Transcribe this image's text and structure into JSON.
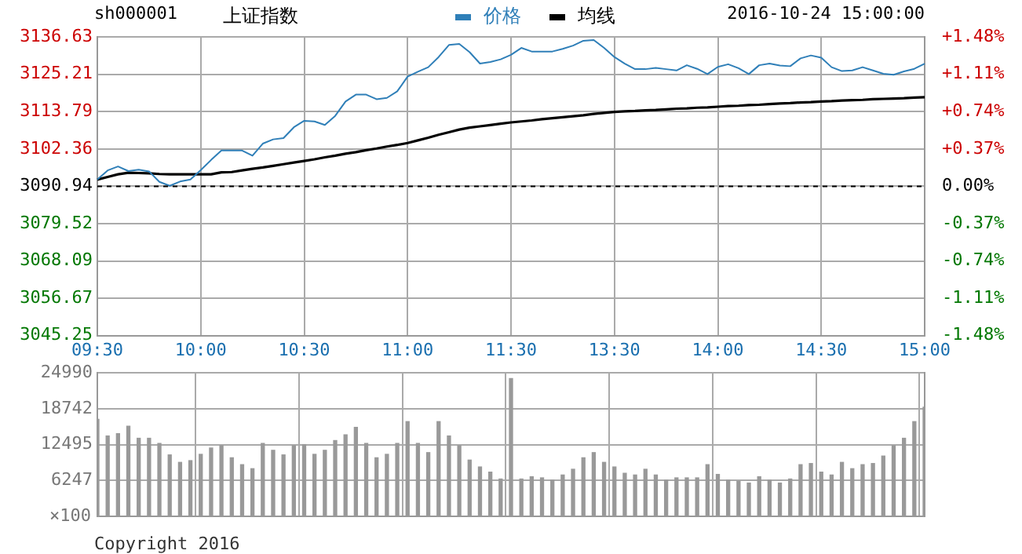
{
  "chart_data": [
    {
      "type": "line",
      "title": "上证指数",
      "subtitle": "sh000001",
      "annotations": [
        "2016-10-24 15:00:00"
      ],
      "legend": "top",
      "grid": true,
      "categories": [
        "09:30",
        null,
        null,
        null,
        null,
        null,
        null,
        null,
        null,
        null,
        "10:00",
        null,
        null,
        null,
        null,
        null,
        null,
        null,
        null,
        null,
        "10:30",
        null,
        null,
        null,
        null,
        null,
        null,
        null,
        null,
        null,
        "11:00",
        null,
        null,
        null,
        null,
        null,
        null,
        null,
        null,
        null,
        "11:30",
        null,
        null,
        null,
        null,
        null,
        null,
        null,
        null,
        null,
        "13:30",
        null,
        null,
        null,
        null,
        null,
        null,
        null,
        null,
        null,
        "14:00",
        null,
        null,
        null,
        null,
        null,
        null,
        null,
        null,
        null,
        "14:30",
        null,
        null,
        null,
        null,
        null,
        null,
        null,
        null,
        null,
        "15:00"
      ],
      "ylim": [
        3045.25,
        3136.63
      ],
      "yticks": [
        3045.25,
        3056.67,
        3068.09,
        3079.52,
        3090.94,
        3102.36,
        3113.79,
        3125.21,
        3136.63
      ],
      "y2lim": [
        -1.48,
        1.48
      ],
      "y2ticks": [
        {
          "value": -1.48,
          "label": "-1.48%"
        },
        {
          "value": -1.11,
          "label": "-1.11%"
        },
        {
          "value": -0.74,
          "label": "-0.74%"
        },
        {
          "value": -0.37,
          "label": "-0.37%"
        },
        {
          "value": 0,
          "label": "0.00%"
        },
        {
          "value": 0.37,
          "label": "+0.37%"
        },
        {
          "value": 0.74,
          "label": "+0.74%"
        },
        {
          "value": 1.11,
          "label": "+1.11%"
        },
        {
          "value": 1.48,
          "label": "+1.48%"
        }
      ],
      "ref_lines": [
        {
          "axis": "y",
          "value": 3090.94,
          "color": "#000000",
          "line_style": "dashed"
        }
      ],
      "series": [
        {
          "name": "价格",
          "color": "#2f7fb8",
          "values": [
            3093.0,
            3095.8,
            3097.0,
            3095.6,
            3096.0,
            3095.5,
            3092.3,
            3091.1,
            3092.4,
            3093.0,
            3095.9,
            3099.0,
            3101.9,
            3101.9,
            3101.9,
            3100.3,
            3104.0,
            3105.3,
            3105.7,
            3109.0,
            3111.0,
            3110.8,
            3109.7,
            3112.5,
            3116.9,
            3119.0,
            3119.0,
            3117.6,
            3118.0,
            3120.0,
            3124.5,
            3126.0,
            3127.4,
            3130.5,
            3134.2,
            3134.5,
            3132.0,
            3128.5,
            3129.0,
            3129.8,
            3131.2,
            3133.3,
            3132.2,
            3132.2,
            3132.2,
            3133.0,
            3134.0,
            3135.5,
            3135.7,
            3133.3,
            3130.5,
            3128.5,
            3126.8,
            3126.8,
            3127.2,
            3126.8,
            3126.4,
            3128.0,
            3126.9,
            3125.3,
            3127.5,
            3128.3,
            3127.1,
            3125.3,
            3128.0,
            3128.5,
            3127.9,
            3127.7,
            3130.1,
            3131.0,
            3130.3,
            3127.4,
            3126.2,
            3126.4,
            3127.4,
            3126.4,
            3125.4,
            3125.1,
            3126.1,
            3126.9,
            3128.5
          ]
        },
        {
          "name": "均线",
          "color": "#000000",
          "values": [
            3093.0,
            3093.8,
            3094.6,
            3095.1,
            3095.0,
            3094.9,
            3094.7,
            3094.6,
            3094.6,
            3094.6,
            3094.6,
            3094.6,
            3095.2,
            3095.3,
            3095.8,
            3096.3,
            3096.7,
            3097.2,
            3097.7,
            3098.2,
            3098.7,
            3099.2,
            3099.8,
            3100.3,
            3100.9,
            3101.4,
            3102.0,
            3102.5,
            3103.1,
            3103.6,
            3104.2,
            3105.0,
            3105.8,
            3106.7,
            3107.5,
            3108.3,
            3108.9,
            3109.3,
            3109.7,
            3110.1,
            3110.5,
            3110.8,
            3111.1,
            3111.5,
            3111.8,
            3112.1,
            3112.4,
            3112.7,
            3113.1,
            3113.4,
            3113.7,
            3113.9,
            3114.0,
            3114.2,
            3114.3,
            3114.5,
            3114.7,
            3114.8,
            3115.0,
            3115.1,
            3115.3,
            3115.5,
            3115.6,
            3115.8,
            3115.9,
            3116.1,
            3116.3,
            3116.4,
            3116.6,
            3116.7,
            3116.9,
            3117.0,
            3117.2,
            3117.3,
            3117.4,
            3117.6,
            3117.7,
            3117.8,
            3117.9,
            3118.1,
            3118.2
          ]
        }
      ]
    },
    {
      "type": "bar",
      "grid": true,
      "tick_labels": "y",
      "color": "#999999",
      "ylabel": "×100",
      "annotations": [
        "Copyright 2016"
      ],
      "categories": [
        null,
        null,
        null,
        null,
        null,
        null,
        null,
        null,
        null,
        null,
        null,
        null,
        null,
        null,
        null,
        null,
        null,
        null,
        null,
        null,
        null,
        null,
        null,
        null,
        null,
        null,
        null,
        null,
        null,
        null,
        null,
        null,
        null,
        null,
        null,
        null,
        null,
        null,
        null,
        null,
        null,
        null,
        null,
        null,
        null,
        null,
        null,
        null,
        null,
        null,
        null,
        null,
        null,
        null,
        null,
        null,
        null,
        null,
        null,
        null,
        null,
        null,
        null,
        null,
        null,
        null,
        null,
        null,
        null,
        null,
        null,
        null,
        null,
        null,
        null,
        null,
        null,
        null,
        null,
        null,
        null
      ],
      "ylim": [
        0,
        24990
      ],
      "yticks": [
        6247,
        12495,
        18742,
        24990
      ],
      "values": [
        16900,
        14000,
        14400,
        15700,
        13600,
        13600,
        12700,
        10700,
        9400,
        9700,
        10800,
        11900,
        12300,
        10200,
        9000,
        8300,
        12700,
        11500,
        10700,
        12300,
        12500,
        10800,
        11500,
        13200,
        14200,
        15500,
        12700,
        10200,
        10800,
        12700,
        16500,
        12700,
        11100,
        16500,
        14000,
        12300,
        9800,
        8600,
        7700,
        6500,
        24000,
        6500,
        6900,
        6700,
        6300,
        7200,
        8200,
        10200,
        11100,
        9400,
        8600,
        7500,
        7200,
        8200,
        7200,
        6300,
        6700,
        6700,
        6700,
        9000,
        7300,
        6300,
        6100,
        5800,
        6900,
        6300,
        5800,
        6500,
        9000,
        9200,
        7700,
        7200,
        9400,
        8300,
        9000,
        9200,
        10500,
        12300,
        13600,
        16500,
        19000
      ]
    }
  ]
}
